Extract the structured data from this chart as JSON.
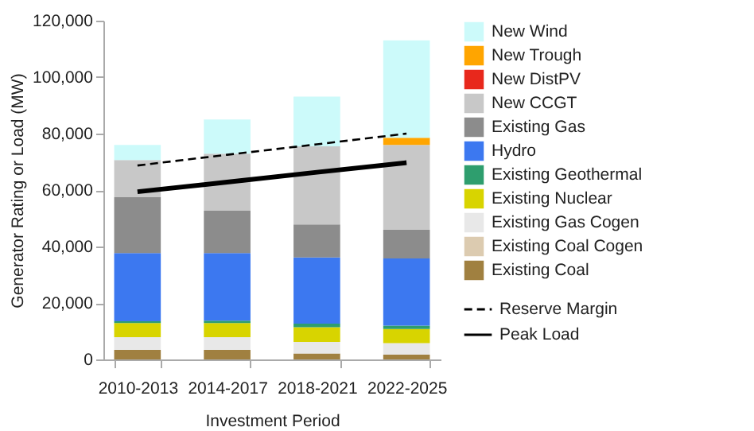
{
  "chart_data": {
    "type": "bar",
    "stacked": true,
    "xlabel": "Investment Period",
    "ylabel": "Generator Rating or Load (MW)",
    "categories": [
      "2010-2013",
      "2014-2017",
      "2018-2021",
      "2022-2025"
    ],
    "ylim": [
      0,
      120000
    ],
    "yticks": [
      0,
      {
        "value": 20000,
        "label": "20,000"
      },
      {
        "value": 40000,
        "label": "40,000"
      },
      {
        "value": 60000,
        "label": "60,000"
      },
      {
        "value": 80000,
        "label": "80,000"
      },
      {
        "value": 100000,
        "label": "100,000"
      },
      {
        "value": 120000,
        "label": "120,000"
      }
    ],
    "grid": false,
    "legend": "right",
    "series": [
      {
        "name": "Existing Coal",
        "color": "#a08040",
        "values": [
          3400,
          3400,
          2100,
          1700
        ]
      },
      {
        "name": "Existing Coal Cogen",
        "color": "#dccbb0",
        "values": [
          0,
          0,
          0,
          0
        ]
      },
      {
        "name": "Existing Gas Cogen",
        "color": "#e8e8e8",
        "values": [
          4500,
          4500,
          4100,
          4100
        ]
      },
      {
        "name": "Existing Nuclear",
        "color": "#d8d400",
        "values": [
          5000,
          5000,
          5200,
          5000
        ]
      },
      {
        "name": "Existing Geothermal",
        "color": "#2e9e6e",
        "values": [
          600,
          800,
          1300,
          1200
        ]
      },
      {
        "name": "Hydro",
        "color": "#3c78f0",
        "values": [
          24200,
          24000,
          23400,
          23800
        ]
      },
      {
        "name": "Existing Gas",
        "color": "#8c8c8c",
        "values": [
          19800,
          15000,
          11700,
          10100
        ]
      },
      {
        "name": "New CCGT",
        "color": "#c8c8c8",
        "values": [
          13100,
          20200,
          27700,
          30100
        ]
      },
      {
        "name": "New DistPV",
        "color": "#e8281c",
        "values": [
          0,
          0,
          0,
          0
        ]
      },
      {
        "name": "New Trough",
        "color": "#ffa500",
        "values": [
          0,
          0,
          0,
          2500
        ]
      },
      {
        "name": "New Wind",
        "color": "#ccfafa",
        "values": [
          5400,
          12100,
          17600,
          34500
        ]
      },
      {
        "name": "Reserve Margin",
        "type": "line",
        "line_style": "dashed",
        "color": "#000000",
        "values": [
          68700,
          72500,
          76200,
          80000
        ]
      },
      {
        "name": "Peak Load",
        "type": "line",
        "line_style": "solid",
        "color": "#000000",
        "values": [
          59400,
          62800,
          66300,
          69700
        ]
      }
    ]
  }
}
